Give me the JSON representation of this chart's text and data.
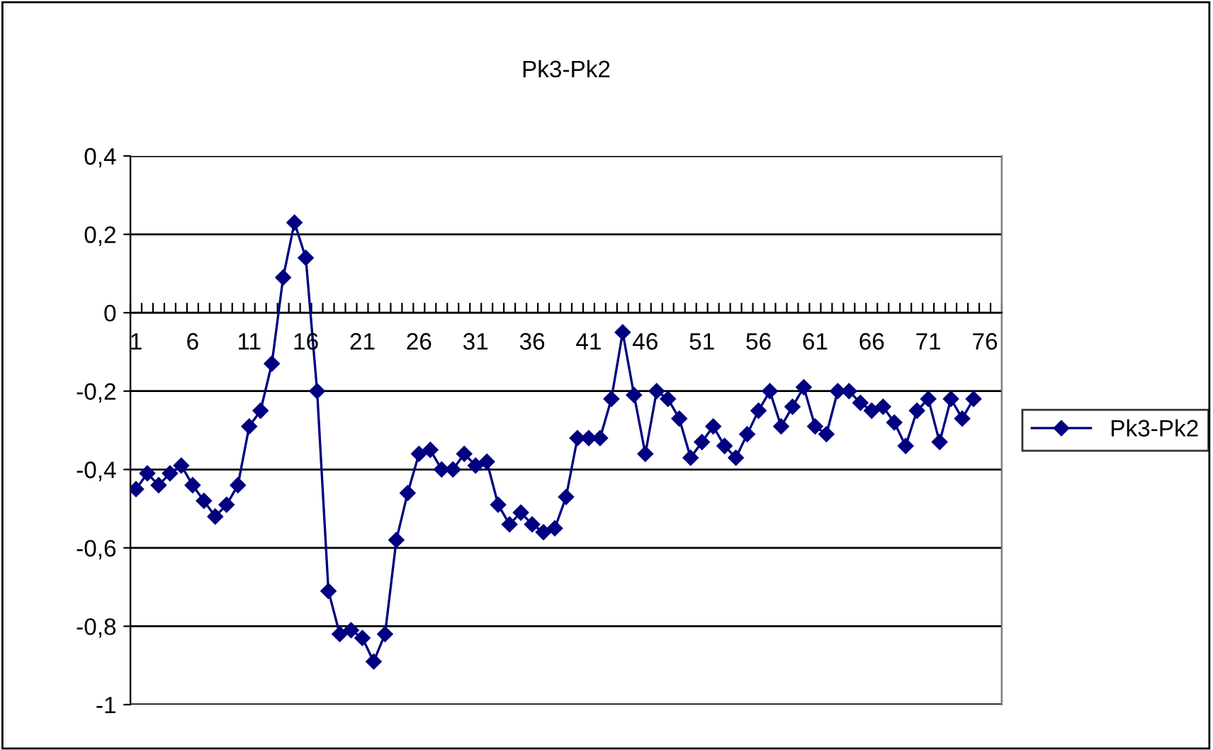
{
  "chart_data": {
    "type": "line",
    "title": "Pk3-Pk2",
    "categories": [
      "1",
      null,
      null,
      null,
      null,
      "6",
      null,
      null,
      null,
      null,
      "11",
      null,
      null,
      null,
      null,
      "16",
      null,
      null,
      null,
      null,
      "21",
      null,
      null,
      null,
      null,
      "26",
      null,
      null,
      null,
      null,
      "31",
      null,
      null,
      null,
      null,
      "36",
      null,
      null,
      null,
      null,
      "41",
      null,
      null,
      null,
      null,
      "46",
      null,
      null,
      null,
      null,
      "51",
      null,
      null,
      null,
      null,
      "56",
      null,
      null,
      null,
      null,
      "61",
      null,
      null,
      null,
      null,
      "66",
      null,
      null,
      null,
      null,
      "71",
      null,
      null,
      null,
      null,
      "76",
      null
    ],
    "series": [
      {
        "name": "Pk3-Pk2",
        "color": "#000080",
        "values": [
          -0.45,
          -0.41,
          -0.44,
          -0.41,
          -0.39,
          -0.44,
          -0.48,
          -0.52,
          -0.49,
          -0.44,
          -0.29,
          -0.25,
          -0.13,
          0.09,
          0.23,
          0.14,
          -0.2,
          -0.71,
          -0.82,
          -0.81,
          -0.83,
          -0.89,
          -0.82,
          -0.58,
          -0.46,
          -0.36,
          -0.35,
          -0.4,
          -0.4,
          -0.36,
          -0.39,
          -0.38,
          -0.49,
          -0.54,
          -0.51,
          -0.54,
          -0.56,
          -0.55,
          -0.47,
          -0.32,
          -0.32,
          -0.32,
          -0.22,
          -0.05,
          -0.21,
          -0.36,
          -0.2,
          -0.22,
          -0.27,
          -0.37,
          -0.33,
          -0.29,
          -0.34,
          -0.37,
          -0.31,
          -0.25,
          -0.2,
          -0.29,
          -0.24,
          -0.19,
          -0.29,
          -0.31,
          -0.2,
          -0.2,
          -0.23,
          -0.25,
          -0.24,
          -0.28,
          -0.34,
          -0.25,
          -0.22,
          -0.33,
          -0.22,
          -0.27,
          -0.22,
          null,
          null
        ]
      }
    ],
    "ylim": [
      -1,
      0.4
    ],
    "yticks": [
      {
        "value": -1,
        "label": "-1"
      },
      {
        "value": -0.8,
        "label": "-0,8"
      },
      {
        "value": -0.6,
        "label": "-0,6"
      },
      {
        "value": -0.4,
        "label": "-0,4"
      },
      {
        "value": -0.2,
        "label": "-0,2"
      },
      {
        "value": 0,
        "label": "0"
      },
      {
        "value": 0.2,
        "label": "0,2"
      },
      {
        "value": 0.4,
        "label": "0,4"
      }
    ],
    "grid": "y",
    "legend": "right",
    "marker": "diamond",
    "line_style": "solid"
  }
}
